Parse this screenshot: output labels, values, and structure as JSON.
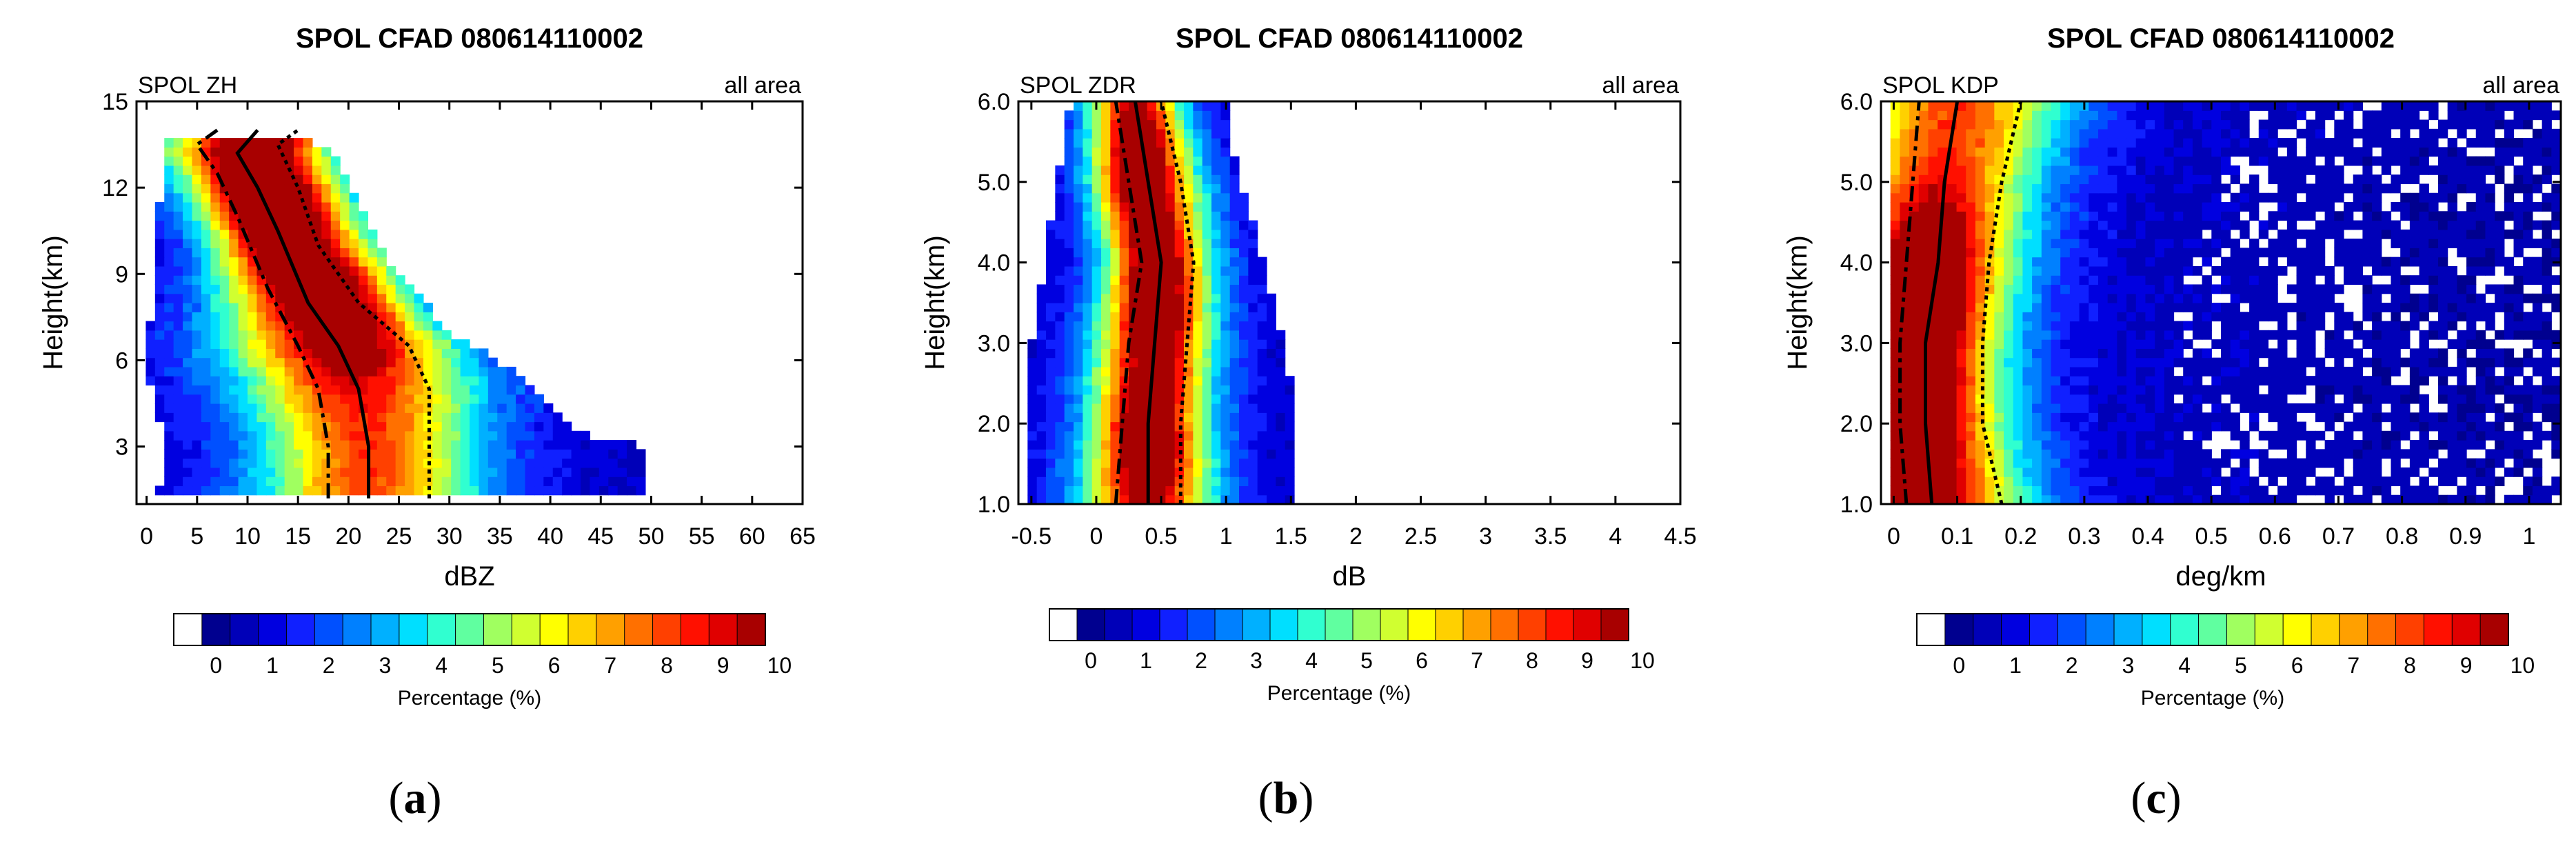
{
  "colors": [
    "#ffffff",
    "#00008f",
    "#0000b8",
    "#0000e0",
    "#1020ff",
    "#0050ff",
    "#0080ff",
    "#00b0ff",
    "#00dfff",
    "#30ffd0",
    "#60ffa0",
    "#a0ff60",
    "#d0ff30",
    "#ffff00",
    "#ffd000",
    "#ffa000",
    "#ff7000",
    "#ff4000",
    "#ff1000",
    "#e00000",
    "#a80000"
  ],
  "panel_labels": [
    {
      "open": "(",
      "letter": "a",
      "close": ")"
    },
    {
      "open": "(",
      "letter": "b",
      "close": ")"
    },
    {
      "open": "(",
      "letter": "c",
      "close": ")"
    }
  ],
  "chart_data": [
    {
      "type": "heatmap",
      "title": "SPOL CFAD 080614110002",
      "left_label": "SPOL ZH",
      "right_label": "all area",
      "xlabel": "dBZ",
      "ylabel": "Height(km)",
      "xlim": [
        -1,
        65
      ],
      "ylim": [
        1,
        15
      ],
      "xticks": [
        0,
        5,
        10,
        15,
        20,
        25,
        30,
        35,
        40,
        45,
        50,
        55,
        60,
        65
      ],
      "xtick_labels": [
        "0",
        "5",
        "10",
        "15",
        "20",
        "25",
        "30",
        "35",
        "40",
        "45",
        "50",
        "55",
        "60",
        "65"
      ],
      "yticks": [
        3,
        6,
        9,
        12,
        15
      ],
      "ytick_labels": [
        "3",
        "6",
        "9",
        "12",
        "15"
      ],
      "median": [
        [
          22,
          1.2
        ],
        [
          22,
          3
        ],
        [
          21,
          5
        ],
        [
          19,
          6.5
        ],
        [
          16,
          8
        ],
        [
          13,
          10.5
        ],
        [
          11,
          12
        ],
        [
          9,
          13.2
        ],
        [
          11,
          14
        ]
      ],
      "q25": [
        [
          18,
          1.2
        ],
        [
          18,
          3
        ],
        [
          17,
          5
        ],
        [
          15,
          6.5
        ],
        [
          12,
          8.5
        ],
        [
          9,
          11
        ],
        [
          7,
          12.5
        ],
        [
          5,
          13.5
        ],
        [
          7,
          14
        ]
      ],
      "q75": [
        [
          28,
          1.2
        ],
        [
          28,
          3
        ],
        [
          28,
          5
        ],
        [
          26,
          6.5
        ],
        [
          21,
          8
        ],
        [
          17,
          10
        ],
        [
          15,
          12
        ],
        [
          13,
          13.5
        ],
        [
          15,
          14
        ]
      ],
      "support": [
        [
          1,
          10.5
        ],
        [
          2,
          13.8
        ],
        [
          4,
          13.8
        ],
        [
          12,
          13.8
        ],
        [
          18,
          13.5
        ],
        [
          21,
          11.5
        ],
        [
          24,
          9.5
        ],
        [
          30,
          7
        ],
        [
          37,
          5.5
        ],
        [
          43,
          3.5
        ],
        [
          49,
          3
        ],
        [
          49,
          1.2
        ],
        [
          1,
          1.2
        ],
        [
          2,
          3
        ],
        [
          0,
          5.5
        ]
      ],
      "peak": [
        [
          11,
          12.5
        ],
        [
          15,
          10.5
        ],
        [
          21,
          8
        ]
      ],
      "colorbar": {
        "label": "Percentage (%)",
        "tick_labels": [
          "0",
          "1",
          "2",
          "3",
          "4",
          "5",
          "6",
          "7",
          "8",
          "9",
          "10"
        ]
      }
    },
    {
      "type": "heatmap",
      "title": "SPOL CFAD 080614110002",
      "left_label": "SPOL ZDR",
      "right_label": "all area",
      "xlabel": "dB",
      "ylabel": "Height(km)",
      "xlim": [
        -0.6,
        4.5
      ],
      "ylim": [
        1,
        6
      ],
      "xticks": [
        -0.5,
        0,
        0.5,
        1,
        1.5,
        2,
        2.5,
        3,
        3.5,
        4,
        4.5
      ],
      "xtick_labels": [
        "-0.5",
        "0",
        "0.5",
        "1",
        "1.5",
        "2",
        "2.5",
        "3",
        "3.5",
        "4",
        "4.5"
      ],
      "yticks": [
        1,
        2,
        3,
        4,
        5,
        6
      ],
      "ytick_labels": [
        "1.0",
        "2.0",
        "3.0",
        "4.0",
        "5.0",
        "6.0"
      ],
      "median": [
        [
          0.4,
          1
        ],
        [
          0.4,
          2
        ],
        [
          0.45,
          3
        ],
        [
          0.5,
          4
        ],
        [
          0.4,
          5
        ],
        [
          0.3,
          6
        ]
      ],
      "q25": [
        [
          0.15,
          1
        ],
        [
          0.2,
          2
        ],
        [
          0.25,
          3
        ],
        [
          0.35,
          4
        ],
        [
          0.25,
          5
        ],
        [
          0.15,
          6
        ]
      ],
      "q75": [
        [
          0.65,
          1
        ],
        [
          0.65,
          2
        ],
        [
          0.7,
          3
        ],
        [
          0.75,
          4
        ],
        [
          0.65,
          5
        ],
        [
          0.5,
          6
        ]
      ],
      "support": [
        [
          -0.5,
          1
        ],
        [
          1.5,
          1
        ],
        [
          1.5,
          2.5
        ],
        [
          1.3,
          4
        ],
        [
          1.1,
          5
        ],
        [
          1.0,
          6
        ],
        [
          -0.2,
          6
        ],
        [
          -0.3,
          5
        ],
        [
          -0.4,
          4
        ],
        [
          -0.5,
          3
        ],
        [
          -0.5,
          2
        ]
      ],
      "peak": [
        [
          0.4,
          1.8
        ],
        [
          0.45,
          3.6
        ],
        [
          0.3,
          5.2
        ]
      ],
      "colorbar": {
        "label": "Percentage (%)",
        "tick_labels": [
          "0",
          "1",
          "2",
          "3",
          "4",
          "5",
          "6",
          "7",
          "8",
          "9",
          "10"
        ]
      }
    },
    {
      "type": "heatmap",
      "title": "SPOL CFAD 080614110002",
      "left_label": "SPOL KDP",
      "right_label": "all area",
      "xlabel": "deg/km",
      "ylabel": "Height(km)",
      "xlim": [
        -0.02,
        1.05
      ],
      "ylim": [
        1,
        6
      ],
      "xticks": [
        0,
        0.1,
        0.2,
        0.3,
        0.4,
        0.5,
        0.6,
        0.7,
        0.8,
        0.9,
        1
      ],
      "xtick_labels": [
        "0",
        "0.1",
        "0.2",
        "0.3",
        "0.4",
        "0.5",
        "0.6",
        "0.7",
        "0.8",
        "0.9",
        "1"
      ],
      "yticks": [
        1,
        2,
        3,
        4,
        5,
        6
      ],
      "ytick_labels": [
        "1.0",
        "2.0",
        "3.0",
        "4.0",
        "5.0",
        "6.0"
      ],
      "median": [
        [
          0.06,
          1
        ],
        [
          0.05,
          2
        ],
        [
          0.05,
          3
        ],
        [
          0.07,
          4
        ],
        [
          0.08,
          5
        ],
        [
          0.1,
          6
        ]
      ],
      "q25": [
        [
          0.02,
          1
        ],
        [
          0.01,
          2
        ],
        [
          0.01,
          3
        ],
        [
          0.02,
          4
        ],
        [
          0.03,
          5
        ],
        [
          0.04,
          6
        ]
      ],
      "q75": [
        [
          0.17,
          1
        ],
        [
          0.14,
          2
        ],
        [
          0.14,
          3
        ],
        [
          0.15,
          4
        ],
        [
          0.17,
          5
        ],
        [
          0.2,
          6
        ]
      ],
      "support": [
        [
          -0.01,
          1
        ],
        [
          1.05,
          1
        ],
        [
          1.05,
          6
        ],
        [
          -0.01,
          6
        ]
      ],
      "peak": [
        [
          0.02,
          1.5
        ],
        [
          0.02,
          2.8
        ],
        [
          0.04,
          4
        ]
      ],
      "colorbar": {
        "label": "Percentage (%)",
        "tick_labels": [
          "0",
          "1",
          "2",
          "3",
          "4",
          "5",
          "6",
          "7",
          "8",
          "9",
          "10"
        ]
      }
    }
  ]
}
